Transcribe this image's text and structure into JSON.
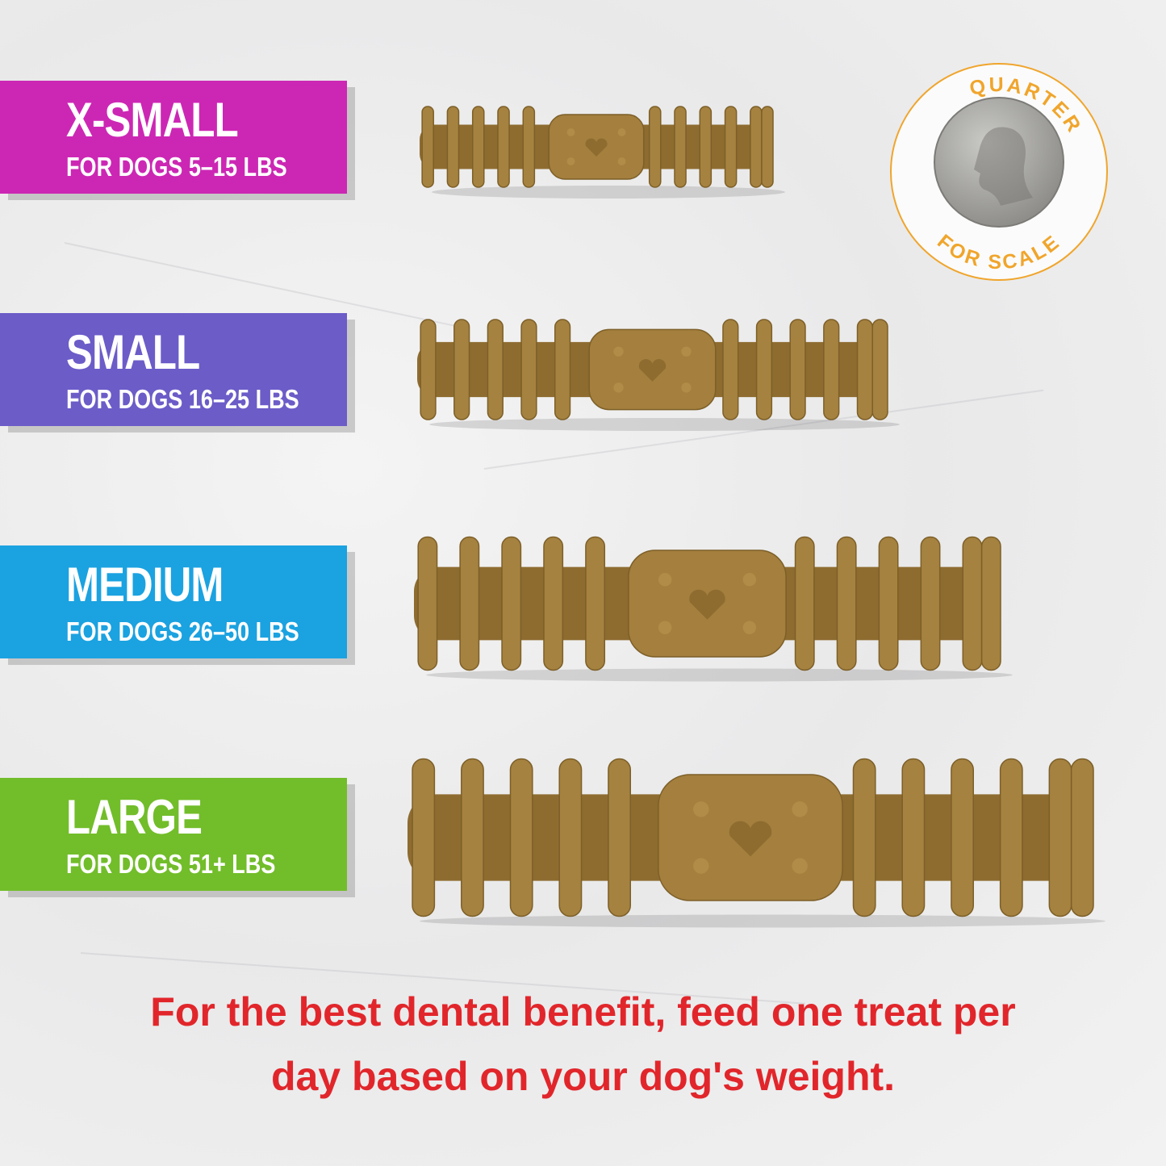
{
  "sizes": [
    {
      "title": "X-SMALL",
      "subtitle": "FOR DOGS 5–15 LBS",
      "color": "#cc27b4"
    },
    {
      "title": "SMALL",
      "subtitle": "FOR DOGS 16–25 LBS",
      "color": "#6b5cc8"
    },
    {
      "title": "MEDIUM",
      "subtitle": "FOR DOGS 26–50 LBS",
      "color": "#1ba2e0"
    },
    {
      "title": "LARGE",
      "subtitle": "FOR DOGS 51+ LBS",
      "color": "#72bd2a"
    }
  ],
  "scale_badge": {
    "top_text": "QUARTER",
    "bottom_text": "FOR SCALE",
    "color": "#f0a52c"
  },
  "footer": {
    "line1": "For the best dental benefit, feed one treat per",
    "line2": "day based on your dog's weight.",
    "color": "#e1262b"
  },
  "chew_color": "#a5823f"
}
